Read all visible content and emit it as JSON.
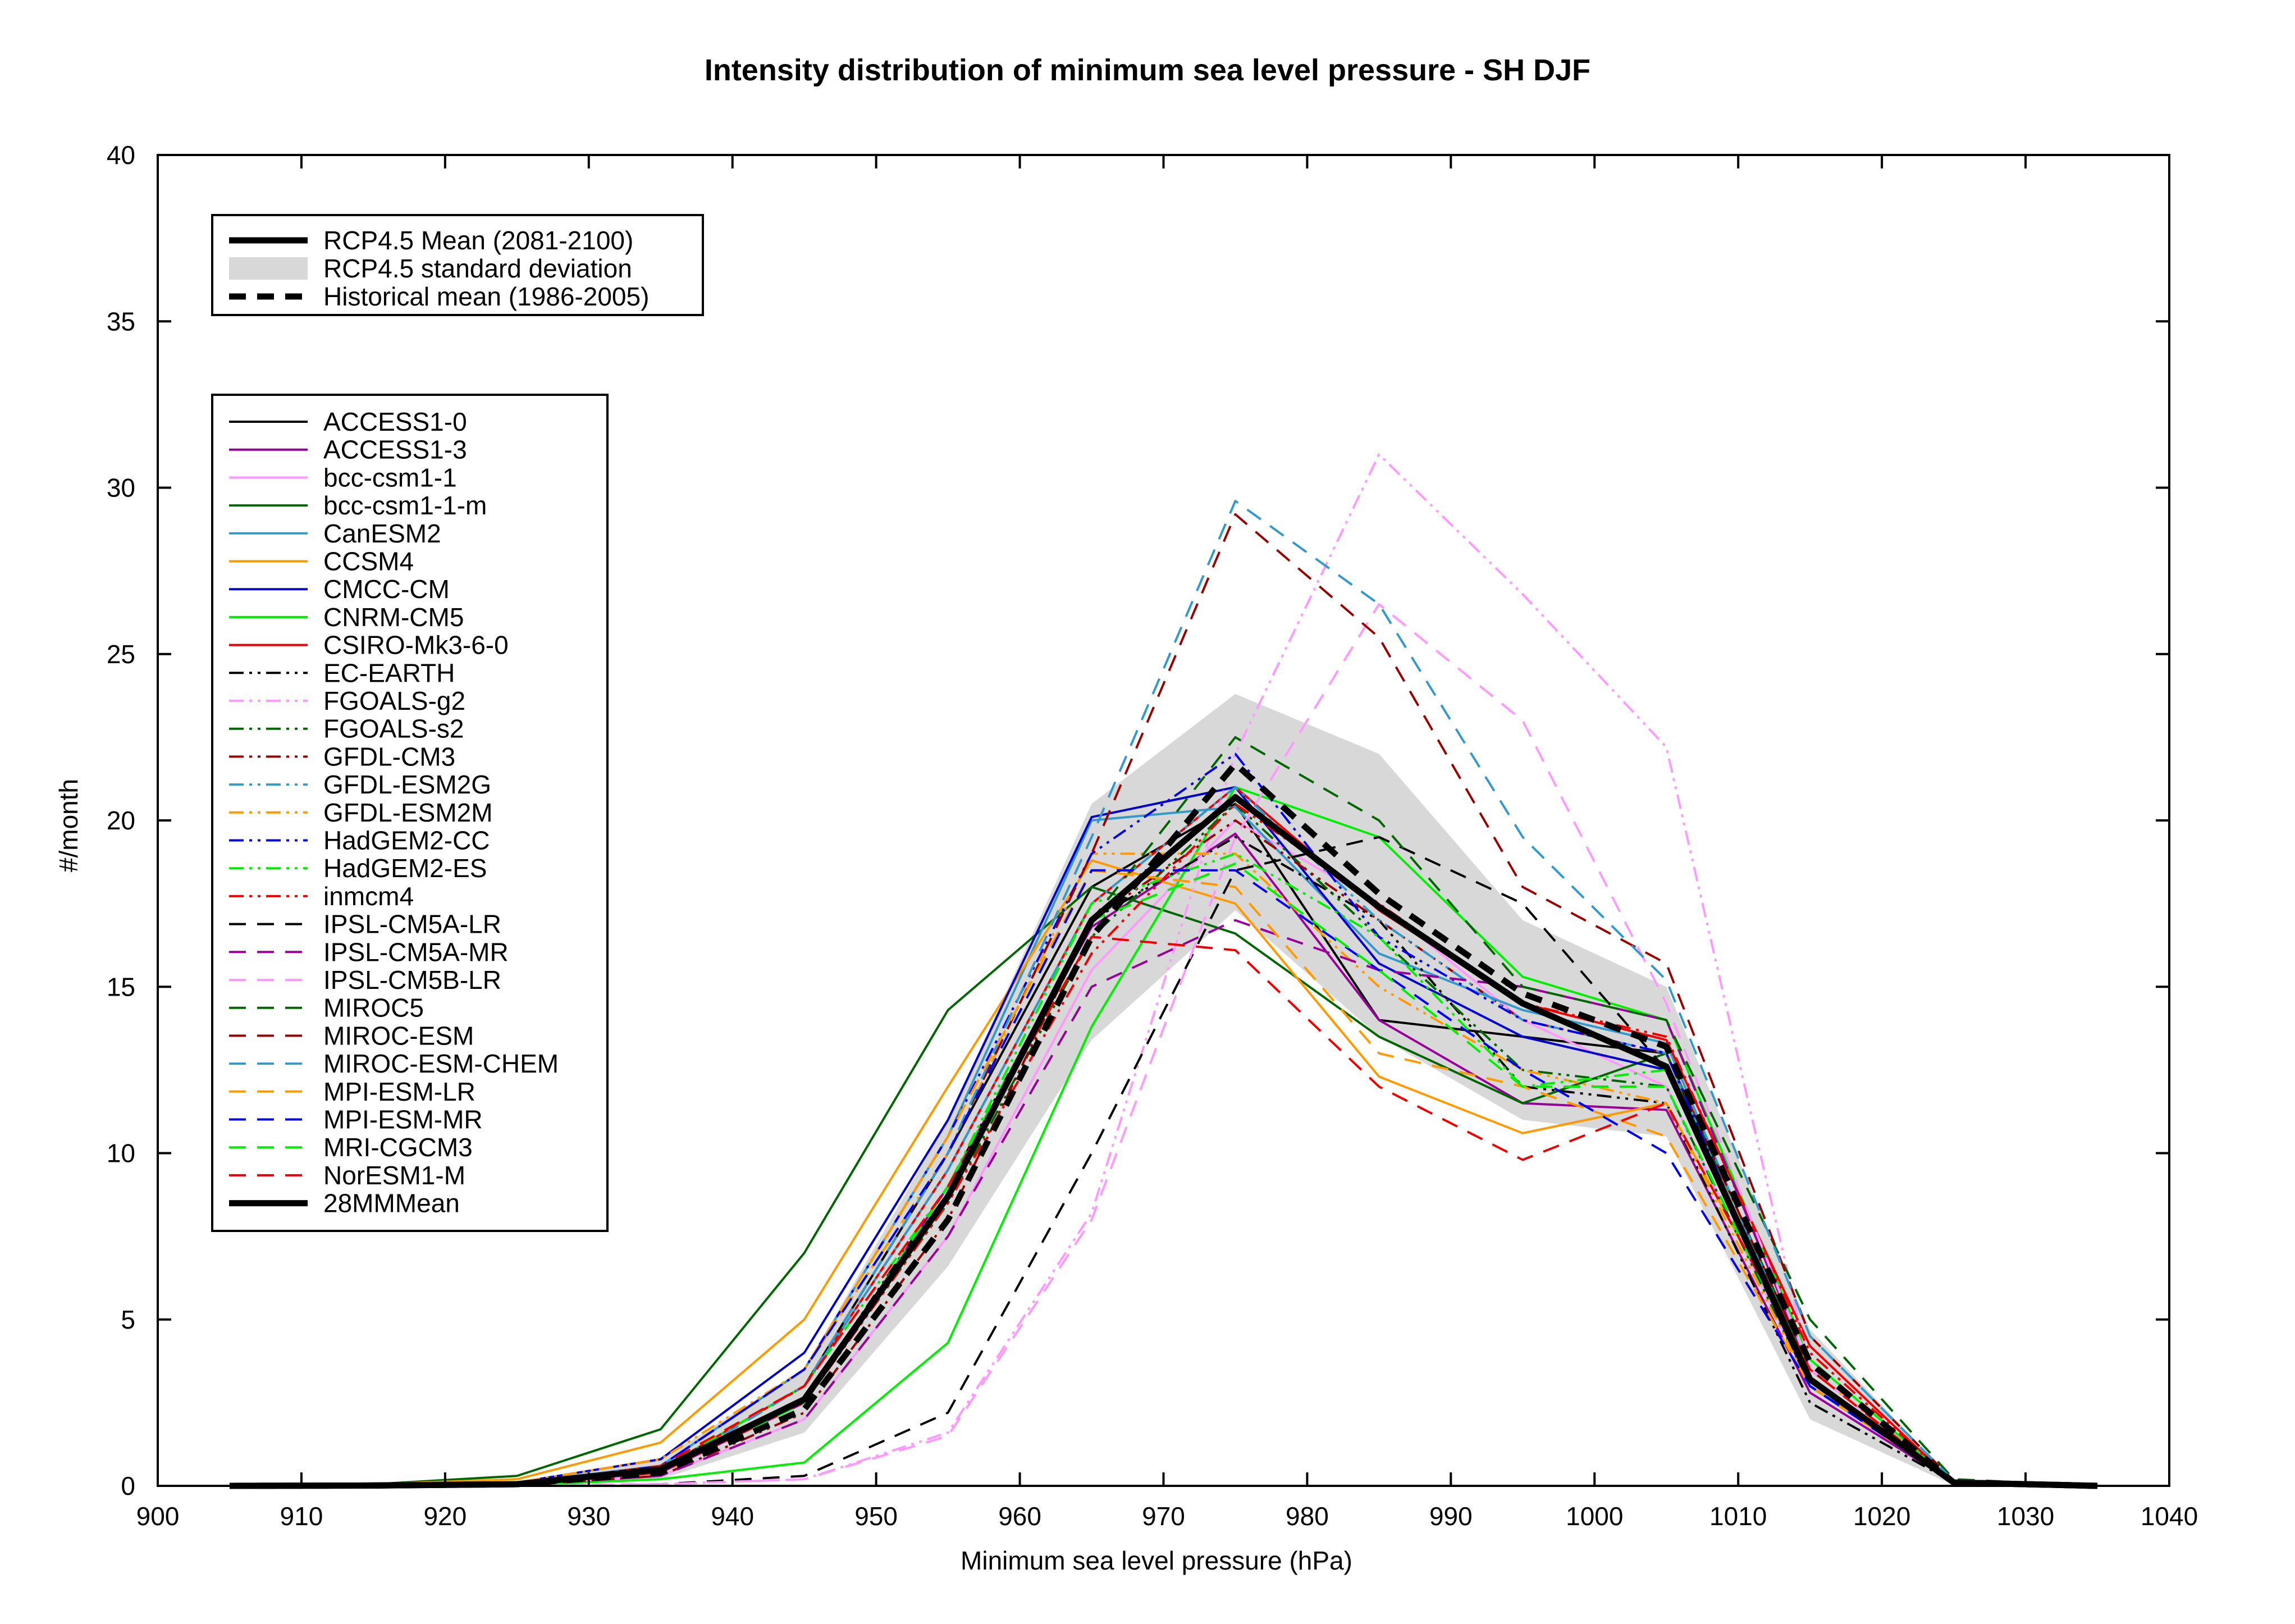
{
  "chart_data": {
    "type": "line",
    "title": "Intensity distribution of minimum sea level pressure - SH DJF",
    "xlabel": "Minimum sea level pressure (hPa)",
    "ylabel": "#/month",
    "xlim": [
      900,
      1040
    ],
    "ylim": [
      0,
      40
    ],
    "xticks": [
      900,
      910,
      920,
      930,
      940,
      950,
      960,
      970,
      980,
      990,
      1000,
      1010,
      1020,
      1030,
      1040
    ],
    "yticks": [
      0,
      5,
      10,
      15,
      20,
      25,
      30,
      35,
      40
    ],
    "grid": false,
    "x": [
      905,
      915,
      925,
      935,
      945,
      955,
      965,
      975,
      985,
      995,
      1005,
      1015,
      1025,
      1035
    ],
    "std_band": {
      "name": "RCP4.5 standard deviation",
      "upper": [
        0,
        0.02,
        0.1,
        0.8,
        3.5,
        11.0,
        20.5,
        23.8,
        22.0,
        17.0,
        15.0,
        4.7,
        0.15,
        0
      ],
      "lower": [
        0,
        0,
        0,
        0.2,
        1.6,
        6.6,
        13.4,
        17.3,
        13.5,
        11.0,
        10.5,
        2.0,
        0.02,
        0
      ]
    },
    "summary_series": [
      {
        "name": "RCP4.5 Mean (2081-2100)",
        "values": [
          0,
          0.01,
          0.05,
          0.5,
          2.6,
          8.7,
          17.0,
          20.7,
          17.4,
          14.5,
          12.6,
          3.2,
          0.1,
          0
        ],
        "color": "#000000",
        "dash": "solid",
        "width": 11
      },
      {
        "name": "Historical mean (1986-2005)",
        "values": [
          0,
          0.01,
          0.05,
          0.4,
          2.3,
          8.0,
          16.5,
          21.7,
          17.8,
          14.8,
          13.2,
          3.7,
          0.1,
          0
        ],
        "color": "#000000",
        "dash": "dashed",
        "width": 11
      }
    ],
    "series": [
      {
        "name": "ACCESS1-0",
        "color": "#000000",
        "dash": "solid",
        "values": [
          0,
          0,
          0.05,
          0.5,
          3.0,
          10.0,
          18.0,
          20.5,
          14.0,
          13.5,
          13.0,
          3.0,
          0.1,
          0
        ]
      },
      {
        "name": "ACCESS1-3",
        "color": "#990099",
        "dash": "solid",
        "values": [
          0,
          0,
          0.05,
          0.4,
          2.5,
          9.0,
          16.8,
          19.6,
          14.0,
          11.5,
          11.3,
          2.8,
          0.1,
          0
        ]
      },
      {
        "name": "bcc-csm1-1",
        "color": "#ff99ff",
        "dash": "solid",
        "values": [
          0,
          0,
          0.02,
          0.3,
          2.0,
          7.5,
          15.5,
          20.0,
          17.5,
          14.0,
          12.0,
          3.0,
          0.1,
          0
        ]
      },
      {
        "name": "bcc-csm1-1-m",
        "color": "#006600",
        "dash": "solid",
        "values": [
          0,
          0.05,
          0.3,
          1.7,
          7.0,
          14.3,
          18.0,
          16.6,
          13.5,
          11.5,
          13.0,
          3.5,
          0.1,
          0
        ]
      },
      {
        "name": "CanESM2",
        "color": "#3399cc",
        "dash": "solid",
        "values": [
          0,
          0,
          0.1,
          0.6,
          3.5,
          10.5,
          20.0,
          20.4,
          16.0,
          14.3,
          13.3,
          3.2,
          0.1,
          0
        ]
      },
      {
        "name": "CCSM4",
        "color": "#ff9900",
        "dash": "solid",
        "values": [
          0,
          0.05,
          0.2,
          1.3,
          5.0,
          12.0,
          18.8,
          17.5,
          12.3,
          10.6,
          11.5,
          3.5,
          0.1,
          0
        ]
      },
      {
        "name": "CMCC-CM",
        "color": "#0000cc",
        "dash": "solid",
        "values": [
          0,
          0,
          0.1,
          0.8,
          4.0,
          11.0,
          20.1,
          21.0,
          15.7,
          13.5,
          12.5,
          3.0,
          0.1,
          0
        ]
      },
      {
        "name": "CNRM-CM5",
        "color": "#00ee00",
        "dash": "solid",
        "values": [
          0,
          0,
          0.02,
          0.2,
          0.7,
          4.3,
          13.8,
          21.0,
          19.5,
          15.3,
          14.0,
          3.8,
          0.1,
          0
        ]
      },
      {
        "name": "CSIRO-Mk3-6-0",
        "color": "#ee0000",
        "dash": "solid",
        "values": [
          0,
          0,
          0.05,
          0.5,
          3.0,
          9.5,
          17.5,
          21.0,
          17.3,
          14.5,
          13.4,
          4.2,
          0.1,
          0
        ]
      },
      {
        "name": "EC-EARTH",
        "color": "#000000",
        "dash": "dashdotdot",
        "values": [
          0,
          0,
          0.03,
          0.4,
          2.6,
          9.0,
          17.0,
          19.5,
          17.0,
          12.0,
          11.5,
          2.5,
          0.1,
          0
        ]
      },
      {
        "name": "FGOALS-g2",
        "color": "#ff99ff",
        "dash": "dashdotdot",
        "values": [
          0,
          0,
          0,
          0.05,
          0.2,
          1.6,
          8.2,
          22.0,
          31.0,
          26.8,
          22.2,
          3.5,
          0.1,
          0
        ]
      },
      {
        "name": "FGOALS-s2",
        "color": "#006600",
        "dash": "dashdotdot",
        "values": [
          0,
          0,
          0.05,
          0.5,
          2.5,
          8.5,
          16.5,
          20.5,
          16.5,
          12.5,
          12.0,
          3.0,
          0.1,
          0
        ]
      },
      {
        "name": "GFDL-CM3",
        "color": "#990000",
        "dash": "dashdotdot",
        "values": [
          0,
          0,
          0.02,
          0.3,
          2.2,
          8.0,
          17.0,
          20.0,
          17.0,
          14.0,
          13.0,
          3.5,
          0.1,
          0
        ]
      },
      {
        "name": "GFDL-ESM2G",
        "color": "#3399cc",
        "dash": "dashdotdot",
        "values": [
          0,
          0,
          0.05,
          0.5,
          3.0,
          9.5,
          17.5,
          21.0,
          17.0,
          14.0,
          13.0,
          3.0,
          0.1,
          0
        ]
      },
      {
        "name": "GFDL-ESM2M",
        "color": "#ff9900",
        "dash": "dashdotdot",
        "values": [
          0,
          0,
          0.1,
          0.8,
          3.5,
          10.0,
          19.0,
          19.0,
          15.0,
          12.5,
          11.5,
          3.0,
          0.1,
          0
        ]
      },
      {
        "name": "HadGEM2-CC",
        "color": "#0000ee",
        "dash": "dashdotdot",
        "values": [
          0,
          0,
          0.05,
          0.6,
          3.5,
          10.5,
          19.0,
          22.0,
          16.5,
          14.0,
          13.0,
          3.0,
          0.1,
          0
        ]
      },
      {
        "name": "HadGEM2-ES",
        "color": "#00ee00",
        "dash": "dashdotdot",
        "values": [
          0,
          0,
          0.05,
          0.5,
          3.0,
          9.0,
          17.5,
          19.0,
          16.5,
          12.0,
          12.5,
          3.2,
          0.1,
          0
        ]
      },
      {
        "name": "inmcm4",
        "color": "#ee0000",
        "dash": "dashdotdot",
        "values": [
          0,
          0,
          0.05,
          0.4,
          2.5,
          8.5,
          16.0,
          20.5,
          17.5,
          14.5,
          13.5,
          4.0,
          0.1,
          0
        ]
      },
      {
        "name": "IPSL-CM5A-LR",
        "color": "#000000",
        "dash": "dashed",
        "values": [
          0,
          0,
          0,
          0.05,
          0.3,
          2.2,
          10.0,
          18.5,
          19.5,
          17.5,
          12.5,
          3.0,
          0.1,
          0
        ]
      },
      {
        "name": "IPSL-CM5A-MR",
        "color": "#990099",
        "dash": "dashed",
        "values": [
          0,
          0,
          0.02,
          0.3,
          2.0,
          7.5,
          15.0,
          17.0,
          15.5,
          15.0,
          14.0,
          3.5,
          0.1,
          0
        ]
      },
      {
        "name": "IPSL-CM5B-LR",
        "color": "#ff99ff",
        "dash": "dashed",
        "values": [
          0,
          0,
          0,
          0.05,
          0.2,
          1.5,
          8.0,
          19.5,
          26.5,
          23.0,
          14.5,
          3.5,
          0.1,
          0
        ]
      },
      {
        "name": "MIROC5",
        "color": "#006600",
        "dash": "dashed",
        "values": [
          0,
          0,
          0.05,
          0.4,
          2.5,
          9.0,
          17.0,
          22.5,
          20.0,
          15.0,
          14.0,
          5.0,
          0.2,
          0
        ]
      },
      {
        "name": "MIROC-ESM",
        "color": "#990000",
        "dash": "dashed",
        "values": [
          0,
          0,
          0.02,
          0.4,
          3.0,
          10.0,
          19.0,
          29.2,
          25.5,
          18.0,
          15.7,
          4.5,
          0.15,
          0
        ]
      },
      {
        "name": "MIROC-ESM-CHEM",
        "color": "#3399cc",
        "dash": "dashed",
        "values": [
          0,
          0,
          0.02,
          0.4,
          3.0,
          10.0,
          19.5,
          29.6,
          26.5,
          19.5,
          15.2,
          4.5,
          0.15,
          0
        ]
      },
      {
        "name": "MPI-ESM-LR",
        "color": "#ff9900",
        "dash": "dashed",
        "values": [
          0,
          0,
          0.05,
          0.6,
          3.5,
          10.5,
          18.5,
          18.0,
          13.0,
          12.0,
          10.5,
          3.0,
          0.1,
          0
        ]
      },
      {
        "name": "MPI-ESM-MR",
        "color": "#0000ee",
        "dash": "dashed",
        "values": [
          0,
          0,
          0.05,
          0.6,
          3.5,
          10.0,
          18.5,
          18.5,
          15.5,
          12.5,
          10.0,
          3.0,
          0.1,
          0
        ]
      },
      {
        "name": "MRI-CGCM3",
        "color": "#00ee00",
        "dash": "dashed",
        "values": [
          0,
          0,
          0.03,
          0.4,
          2.5,
          9.0,
          17.0,
          18.7,
          15.5,
          12.0,
          12.0,
          3.2,
          0.1,
          0
        ]
      },
      {
        "name": "NorESM1-M",
        "color": "#ee0000",
        "dash": "dashed",
        "values": [
          0,
          0,
          0.05,
          0.6,
          3.0,
          9.0,
          16.5,
          16.1,
          12.0,
          9.8,
          11.5,
          3.5,
          0.1,
          0
        ]
      },
      {
        "name": "28MMMean",
        "color": "#000000",
        "dash": "solid",
        "bold": true,
        "values": [
          0,
          0.01,
          0.05,
          0.5,
          2.6,
          8.7,
          17.0,
          20.7,
          17.4,
          14.5,
          12.6,
          3.2,
          0.1,
          0
        ]
      }
    ],
    "legend_top": [
      "RCP4.5 Mean (2081-2100)",
      "RCP4.5 standard deviation",
      "Historical mean (1986-2005)"
    ],
    "legend_placement": "top-left"
  }
}
